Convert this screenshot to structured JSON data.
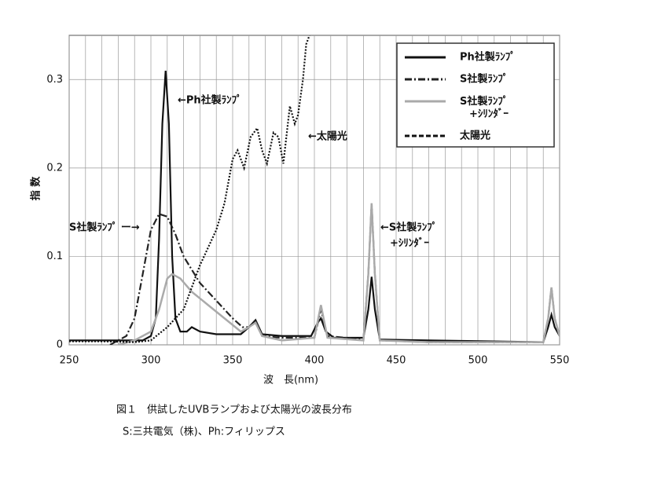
{
  "chart_data": {
    "type": "line",
    "xlabel": "波　長(nm)",
    "ylabel": "指 数",
    "caption": [
      "図１　供試したUVBランプおよび太陽光の波長分布",
      "S:三共電気（株)、Ph:フィリップス"
    ],
    "xlim": [
      250,
      550
    ],
    "ylim": [
      0,
      0.35
    ],
    "xticks": [
      250,
      300,
      350,
      400,
      450,
      500,
      550
    ],
    "xminorticks": [
      260,
      270,
      280,
      290,
      310,
      320,
      330,
      340,
      360,
      370,
      380,
      390,
      410,
      420,
      430,
      440,
      460,
      470,
      480,
      490,
      510,
      520,
      530,
      540
    ],
    "yticks": [
      0,
      0.1,
      0.2,
      0.3
    ],
    "grid": true,
    "legend": "upper right",
    "annotations": [
      "←Ph社製ﾗﾝﾌﾟ",
      "←太陽光",
      "S社製ﾗﾝﾌﾟ ー→",
      "←S社製ﾗﾝﾌﾟ",
      "+ｼﾘﾝﾀﾞｰ"
    ],
    "series": [
      {
        "name": "Ph社製ﾗﾝﾌﾟ",
        "color": "#111111",
        "style": "solid",
        "x": [
          250,
          295,
          300,
          303,
          305,
          307,
          309,
          311,
          313,
          315,
          318,
          322,
          325,
          330,
          340,
          355,
          360,
          364,
          368,
          380,
          398,
          402,
          404,
          407,
          412,
          430,
          433,
          435,
          437,
          440,
          470,
          540,
          543,
          545,
          547,
          550
        ],
        "values": [
          0.005,
          0.005,
          0.01,
          0.03,
          0.12,
          0.25,
          0.31,
          0.25,
          0.1,
          0.03,
          0.015,
          0.015,
          0.02,
          0.015,
          0.012,
          0.012,
          0.02,
          0.028,
          0.012,
          0.01,
          0.01,
          0.025,
          0.03,
          0.015,
          0.008,
          0.008,
          0.04,
          0.077,
          0.04,
          0.006,
          0.005,
          0.003,
          0.02,
          0.034,
          0.02,
          0.01
        ]
      },
      {
        "name": "S社製ﾗﾝﾌﾟ",
        "color": "#222222",
        "style": "dashdot",
        "x": [
          275,
          285,
          290,
          295,
          300,
          305,
          310,
          315,
          320,
          330,
          340,
          350,
          356,
          360,
          364,
          368,
          380,
          400,
          404,
          408,
          430,
          433,
          435,
          437,
          440,
          470,
          540,
          543,
          545,
          547,
          550
        ],
        "values": [
          0,
          0.01,
          0.03,
          0.08,
          0.13,
          0.148,
          0.145,
          0.125,
          0.1,
          0.07,
          0.05,
          0.03,
          0.02,
          0.02,
          0.028,
          0.01,
          0.008,
          0.008,
          0.04,
          0.01,
          0.006,
          0.08,
          0.16,
          0.08,
          0.005,
          0.003,
          0.003,
          0.03,
          0.065,
          0.03,
          0.01
        ]
      },
      {
        "name": "S社製ﾗﾝﾌﾟ\n+ｼﾘﾝﾀﾞｰ",
        "color": "#aaaaaa",
        "style": "solid",
        "x": [
          280,
          290,
          300,
          305,
          310,
          313,
          318,
          325,
          335,
          345,
          355,
          360,
          364,
          368,
          380,
          400,
          404,
          408,
          430,
          433,
          435,
          437,
          440,
          470,
          540,
          543,
          545,
          547,
          550
        ],
        "values": [
          0,
          0.005,
          0.015,
          0.04,
          0.075,
          0.08,
          0.075,
          0.06,
          0.045,
          0.03,
          0.015,
          0.02,
          0.025,
          0.01,
          0.005,
          0.008,
          0.045,
          0.008,
          0.005,
          0.08,
          0.16,
          0.08,
          0.005,
          0.003,
          0.003,
          0.03,
          0.065,
          0.03,
          0.01
        ]
      },
      {
        "name": "太陽光",
        "color": "#111111",
        "style": "dotted",
        "x": [
          250,
          270,
          290,
          300,
          310,
          320,
          330,
          340,
          345,
          350,
          353,
          357,
          361,
          365,
          368,
          371,
          375,
          378,
          381,
          385,
          388,
          390,
          393,
          395,
          397
        ],
        "values": [
          0.004,
          0.004,
          0.003,
          0.005,
          0.02,
          0.04,
          0.09,
          0.13,
          0.16,
          0.21,
          0.22,
          0.2,
          0.235,
          0.245,
          0.22,
          0.205,
          0.24,
          0.235,
          0.205,
          0.27,
          0.25,
          0.26,
          0.3,
          0.34,
          0.35
        ]
      }
    ]
  }
}
